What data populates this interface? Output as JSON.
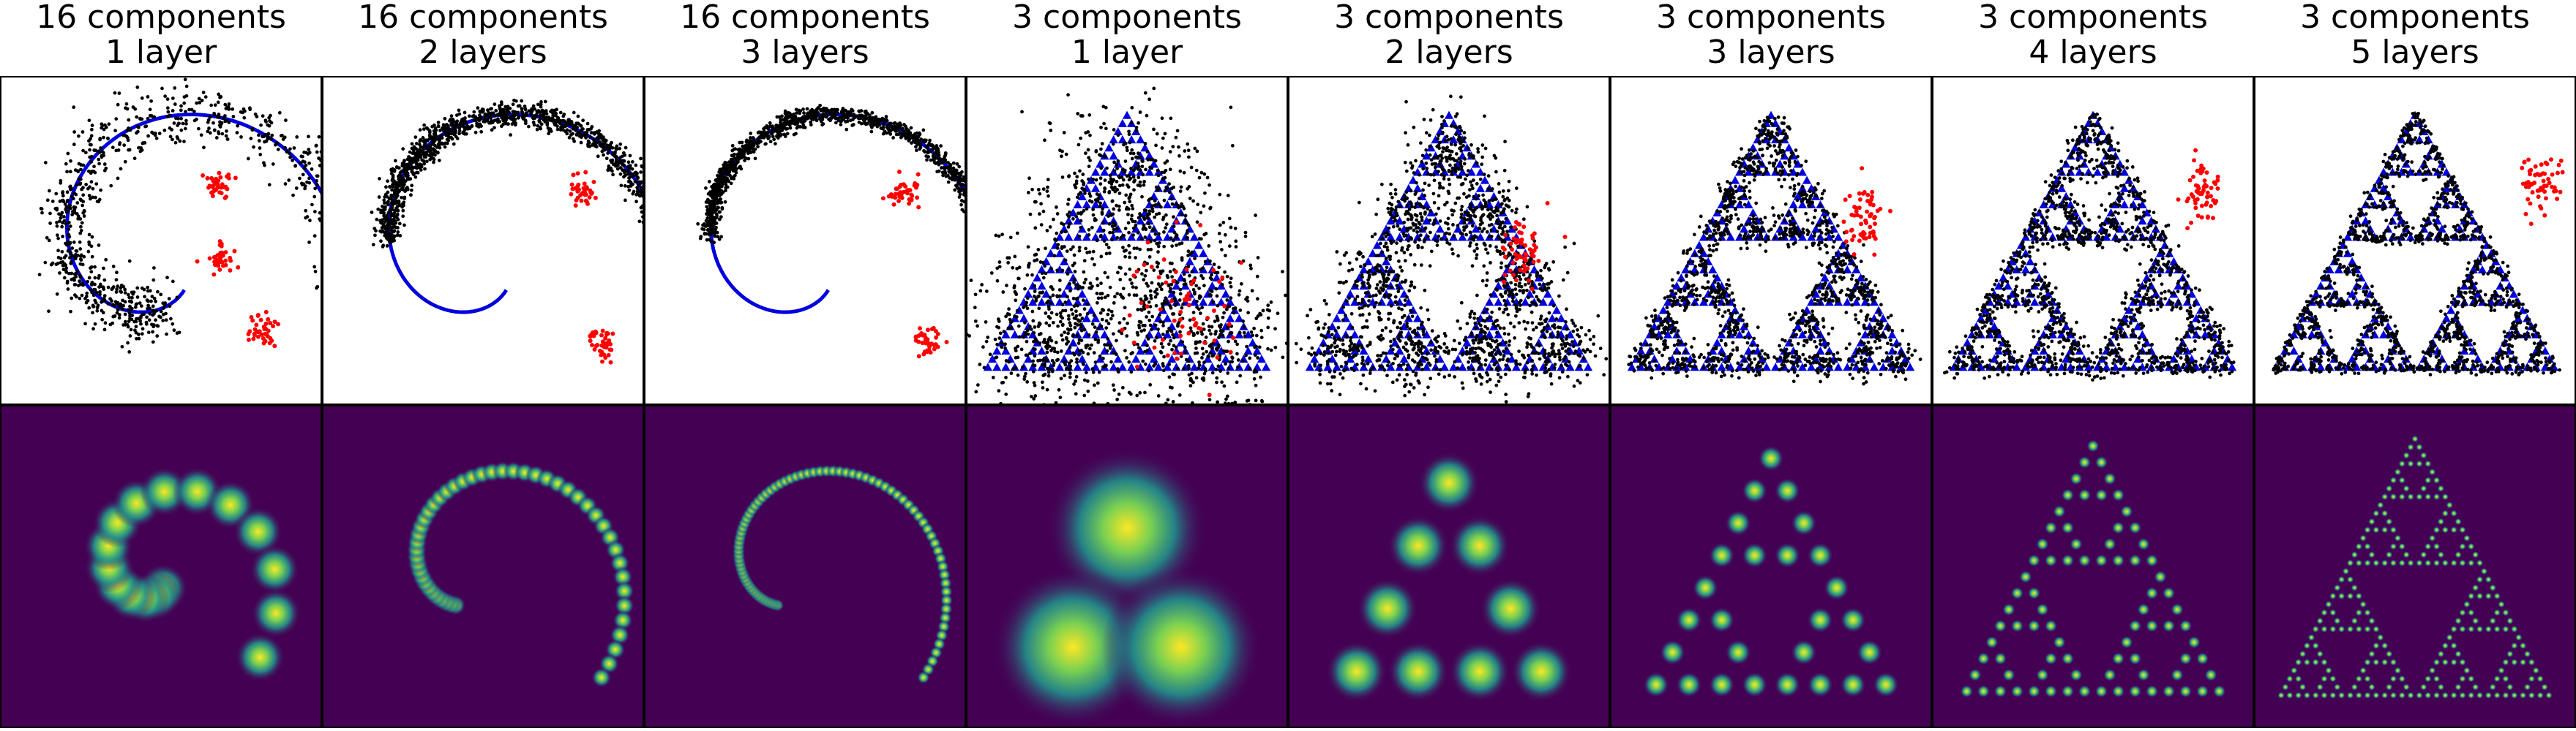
{
  "figure": {
    "columns": [
      {
        "line1": "16 components",
        "line2": "1 layer",
        "target": "spiral",
        "components": 16,
        "layers": 1
      },
      {
        "line1": "16 components",
        "line2": "2 layers",
        "target": "spiral",
        "components": 16,
        "layers": 2
      },
      {
        "line1": "16 components",
        "line2": "3 layers",
        "target": "spiral",
        "components": 16,
        "layers": 3
      },
      {
        "line1": "3 components",
        "line2": "1 layer",
        "target": "sierpinski",
        "components": 3,
        "layers": 1
      },
      {
        "line1": "3 components",
        "line2": "2 layers",
        "target": "sierpinski",
        "components": 3,
        "layers": 2
      },
      {
        "line1": "3 components",
        "line2": "3 layers",
        "target": "sierpinski",
        "components": 3,
        "layers": 3
      },
      {
        "line1": "3 components",
        "line2": "4 layers",
        "target": "sierpinski",
        "components": 3,
        "layers": 4
      },
      {
        "line1": "3 components",
        "line2": "5 layers",
        "target": "sierpinski",
        "components": 3,
        "layers": 5
      }
    ],
    "colors": {
      "target_curve": "#0000dd",
      "samples": "#000000",
      "highlight_samples": "#ff0000",
      "density_background": "#440154",
      "density_mid": "#21918c",
      "density_peak": "#fde725"
    }
  },
  "chart_data": [
    {
      "type": "scatter",
      "row": "samples",
      "column": 1,
      "components": 16,
      "layers": 1,
      "target": "spiral",
      "series": [
        {
          "color": "#0000dd"
        },
        {
          "color": "#000000"
        },
        {
          "color": "#ff0000"
        }
      ]
    },
    {
      "type": "scatter",
      "row": "samples",
      "column": 2,
      "components": 16,
      "layers": 2,
      "target": "spiral",
      "series": [
        {
          "color": "#0000dd"
        },
        {
          "color": "#000000"
        },
        {
          "color": "#ff0000"
        }
      ]
    },
    {
      "type": "scatter",
      "row": "samples",
      "column": 3,
      "components": 16,
      "layers": 3,
      "target": "spiral",
      "series": [
        {
          "color": "#0000dd"
        },
        {
          "color": "#000000"
        },
        {
          "color": "#ff0000"
        }
      ]
    },
    {
      "type": "scatter",
      "row": "samples",
      "column": 4,
      "components": 3,
      "layers": 1,
      "target": "sierpinski",
      "series": [
        {
          "color": "#0000dd"
        },
        {
          "color": "#000000"
        },
        {
          "color": "#ff0000"
        }
      ]
    },
    {
      "type": "scatter",
      "row": "samples",
      "column": 5,
      "components": 3,
      "layers": 2,
      "target": "sierpinski",
      "series": [
        {
          "color": "#0000dd"
        },
        {
          "color": "#000000"
        },
        {
          "color": "#ff0000"
        }
      ]
    },
    {
      "type": "scatter",
      "row": "samples",
      "column": 6,
      "components": 3,
      "layers": 3,
      "target": "sierpinski",
      "series": [
        {
          "color": "#0000dd"
        },
        {
          "color": "#000000"
        },
        {
          "color": "#ff0000"
        }
      ]
    },
    {
      "type": "scatter",
      "row": "samples",
      "column": 7,
      "components": 3,
      "layers": 4,
      "target": "sierpinski",
      "series": [
        {
          "color": "#0000dd"
        },
        {
          "color": "#000000"
        },
        {
          "color": "#ff0000"
        }
      ]
    },
    {
      "type": "scatter",
      "row": "samples",
      "column": 8,
      "components": 3,
      "layers": 5,
      "target": "sierpinski",
      "series": [
        {
          "color": "#0000dd"
        },
        {
          "color": "#000000"
        },
        {
          "color": "#ff0000"
        }
      ]
    },
    {
      "type": "heatmap",
      "row": "density",
      "column": 1,
      "components": 16,
      "layers": 1,
      "modes": 16,
      "colormap": "viridis"
    },
    {
      "type": "heatmap",
      "row": "density",
      "column": 2,
      "components": 16,
      "layers": 2,
      "modes": 48,
      "colormap": "viridis"
    },
    {
      "type": "heatmap",
      "row": "density",
      "column": 3,
      "components": 16,
      "layers": 3,
      "modes": 80,
      "colormap": "viridis"
    },
    {
      "type": "heatmap",
      "row": "density",
      "column": 4,
      "components": 3,
      "layers": 1,
      "modes": 3,
      "colormap": "viridis"
    },
    {
      "type": "heatmap",
      "row": "density",
      "column": 5,
      "components": 3,
      "layers": 2,
      "modes": 9,
      "colormap": "viridis"
    },
    {
      "type": "heatmap",
      "row": "density",
      "column": 6,
      "components": 3,
      "layers": 3,
      "modes": 27,
      "colormap": "viridis"
    },
    {
      "type": "heatmap",
      "row": "density",
      "column": 7,
      "components": 3,
      "layers": 4,
      "modes": 81,
      "colormap": "viridis"
    },
    {
      "type": "heatmap",
      "row": "density",
      "column": 8,
      "components": 3,
      "layers": 5,
      "modes": 243,
      "colormap": "viridis"
    }
  ]
}
